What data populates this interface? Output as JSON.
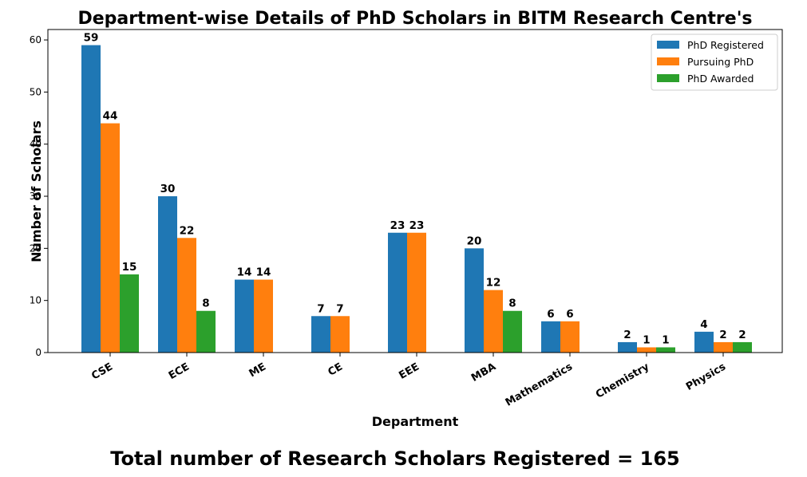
{
  "chart_data": {
    "type": "bar",
    "title": "Department-wise Details of PhD Scholars in BITM Research Centre's",
    "xlabel": "Department",
    "ylabel": "Number of Scholars",
    "categories": [
      "CSE",
      "ECE",
      "ME",
      "CE",
      "EEE",
      "MBA",
      "Mathematics",
      "Chemistry",
      "Physics"
    ],
    "series": [
      {
        "name": "PhD Registered",
        "color": "#1f77b4",
        "values": [
          59,
          30,
          14,
          7,
          23,
          20,
          6,
          2,
          4
        ]
      },
      {
        "name": "Pursuing PhD",
        "color": "#ff7f0e",
        "values": [
          44,
          22,
          14,
          7,
          23,
          12,
          6,
          1,
          2
        ]
      },
      {
        "name": "PhD Awarded",
        "color": "#2ca02c",
        "values": [
          15,
          8,
          0,
          0,
          0,
          8,
          0,
          1,
          2
        ]
      }
    ],
    "ylim": [
      0,
      62
    ],
    "yticks": [
      0,
      10,
      20,
      30,
      40,
      50,
      60
    ],
    "grid": false,
    "legend_position": "top-right",
    "footer": "Total number of Research Scholars Registered = 165"
  }
}
